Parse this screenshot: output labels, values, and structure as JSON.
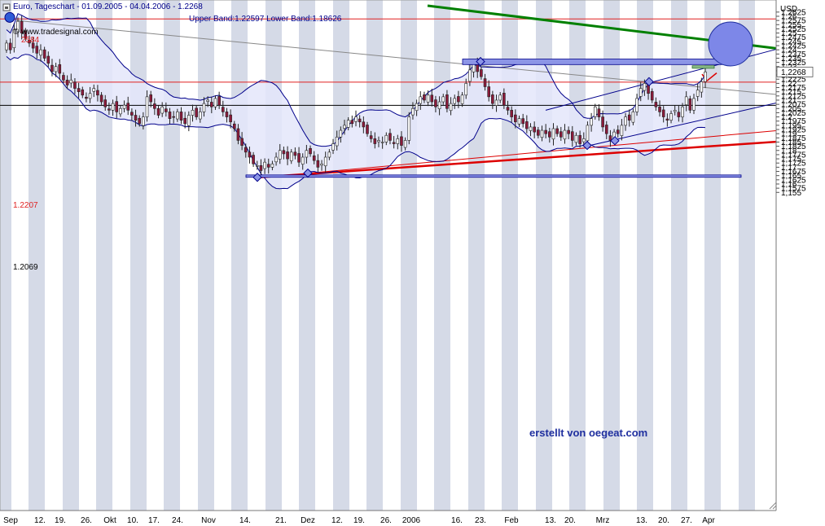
{
  "header": {
    "title": "Euro, Tageschart - 01.09.2005 - 04.04.2006 - 1.2268",
    "bands_label": "Upper Band:1.22597 Lower Band:1.18626",
    "source": "© www.tradesignal.com",
    "credit": "erstellt von oegeat.com"
  },
  "colors": {
    "candle_up": "#ffffff",
    "candle_down": "#8b1a3a",
    "band": "#00008b",
    "band_fill": "#e4e6fa",
    "stripe": "#d5dae7",
    "trend_green": "#008000",
    "trend_red": "#dd0000",
    "trend_gray": "#888888",
    "rect_fill": "#8c95e6",
    "hline_red": "#e02020",
    "hline_black": "#000000"
  },
  "chart_data": {
    "type": "candlestick",
    "title": "Euro, Tageschart - 01.09.2005 - 04.04.2006 - 1.2268",
    "ylabel": "USD",
    "ylim": [
      1.1538,
      1.2663
    ],
    "x_ticks": [
      "Sep",
      "12.",
      "19.",
      "26.",
      "Okt",
      "10.",
      "17.",
      "24.",
      "Nov",
      "14.",
      "21.",
      "Dez",
      "12.",
      "19.",
      "26.",
      "2006",
      "16.",
      "23.",
      "Feb",
      "13.",
      "20.",
      "Mrz",
      "13.",
      "20.",
      "27.",
      "Apr"
    ],
    "y_ticks": [
      "1,2625",
      "1,26",
      "1,2575",
      "1,255",
      "1,2525",
      "1,25",
      "1,2475",
      "1,245",
      "1,2425",
      "1,24",
      "1,2375",
      "1,235",
      "1,2325",
      "1,23",
      "1,2275",
      "1,225",
      "1,2225",
      "1,22",
      "1,2175",
      "1,215",
      "1,2125",
      "1,21",
      "1,2075",
      "1,205",
      "1,2025",
      "1,2",
      "1,1975",
      "1,195",
      "1,1925",
      "1,19",
      "1,1875",
      "1,185",
      "1,1825",
      "1,18",
      "1,1775",
      "1,175",
      "1,1725",
      "1,17",
      "1,1675",
      "1,165",
      "1,1625",
      "1,16",
      "1,1575",
      "1,155"
    ],
    "last_price": "1,2268",
    "horizontal_lines": [
      {
        "label": "2584",
        "value": 1.2584,
        "color": "red"
      },
      {
        "label": "1.2207",
        "value": 1.2207,
        "color": "red"
      },
      {
        "label": "1.2069",
        "value": 1.2069,
        "color": "black"
      }
    ],
    "closes": [
      1.244,
      1.24,
      1.252,
      1.257,
      1.25,
      1.247,
      1.244,
      1.241,
      1.238,
      1.24,
      1.235,
      1.232,
      1.227,
      1.23,
      1.226,
      1.222,
      1.219,
      1.222,
      1.217,
      1.215,
      1.213,
      1.211,
      1.214,
      1.217,
      1.213,
      1.209,
      1.206,
      1.204,
      1.208,
      1.203,
      1.205,
      1.207,
      1.204,
      1.201,
      1.198,
      1.196,
      1.2,
      1.212,
      1.209,
      1.205,
      1.201,
      1.206,
      1.203,
      1.199,
      1.2,
      1.203,
      1.198,
      1.196,
      1.201,
      1.204,
      1.2,
      1.203,
      1.208,
      1.21,
      1.206,
      1.211,
      1.207,
      1.203,
      1.2,
      1.197,
      1.193,
      1.186,
      1.183,
      1.179,
      1.176,
      1.172,
      1.171,
      1.168,
      1.173,
      1.17,
      1.172,
      1.176,
      1.18,
      1.178,
      1.175,
      1.179,
      1.177,
      1.173,
      1.176,
      1.18,
      1.178,
      1.174,
      1.17,
      1.172,
      1.176,
      1.179,
      1.184,
      1.188,
      1.192,
      1.195,
      1.198,
      1.196,
      1.2,
      1.197,
      1.194,
      1.19,
      1.187,
      1.184,
      1.186,
      1.185,
      1.189,
      1.186,
      1.184,
      1.187,
      1.183,
      1.186,
      1.2,
      1.205,
      1.208,
      1.212,
      1.21,
      1.213,
      1.209,
      1.206,
      1.209,
      1.212,
      1.205,
      1.208,
      1.211,
      1.209,
      1.213,
      1.22,
      1.228,
      1.232,
      1.227,
      1.224,
      1.218,
      1.212,
      1.208,
      1.21,
      1.213,
      1.207,
      1.204,
      1.2,
      1.197,
      1.199,
      1.196,
      1.193,
      1.194,
      1.191,
      1.189,
      1.192,
      1.19,
      1.188,
      1.193,
      1.19,
      1.188,
      1.192,
      1.19,
      1.186,
      1.189,
      1.184,
      1.187,
      1.195,
      1.199,
      1.206,
      1.2,
      1.194,
      1.19,
      1.186,
      1.191,
      1.19,
      1.195,
      1.2,
      1.198,
      1.203,
      1.211,
      1.217,
      1.22,
      1.214,
      1.21,
      1.206,
      1.203,
      1.2,
      1.198,
      1.202,
      1.204,
      1.2,
      1.206,
      1.212,
      1.204,
      1.211,
      1.216,
      1.221,
      1.2268
    ]
  }
}
